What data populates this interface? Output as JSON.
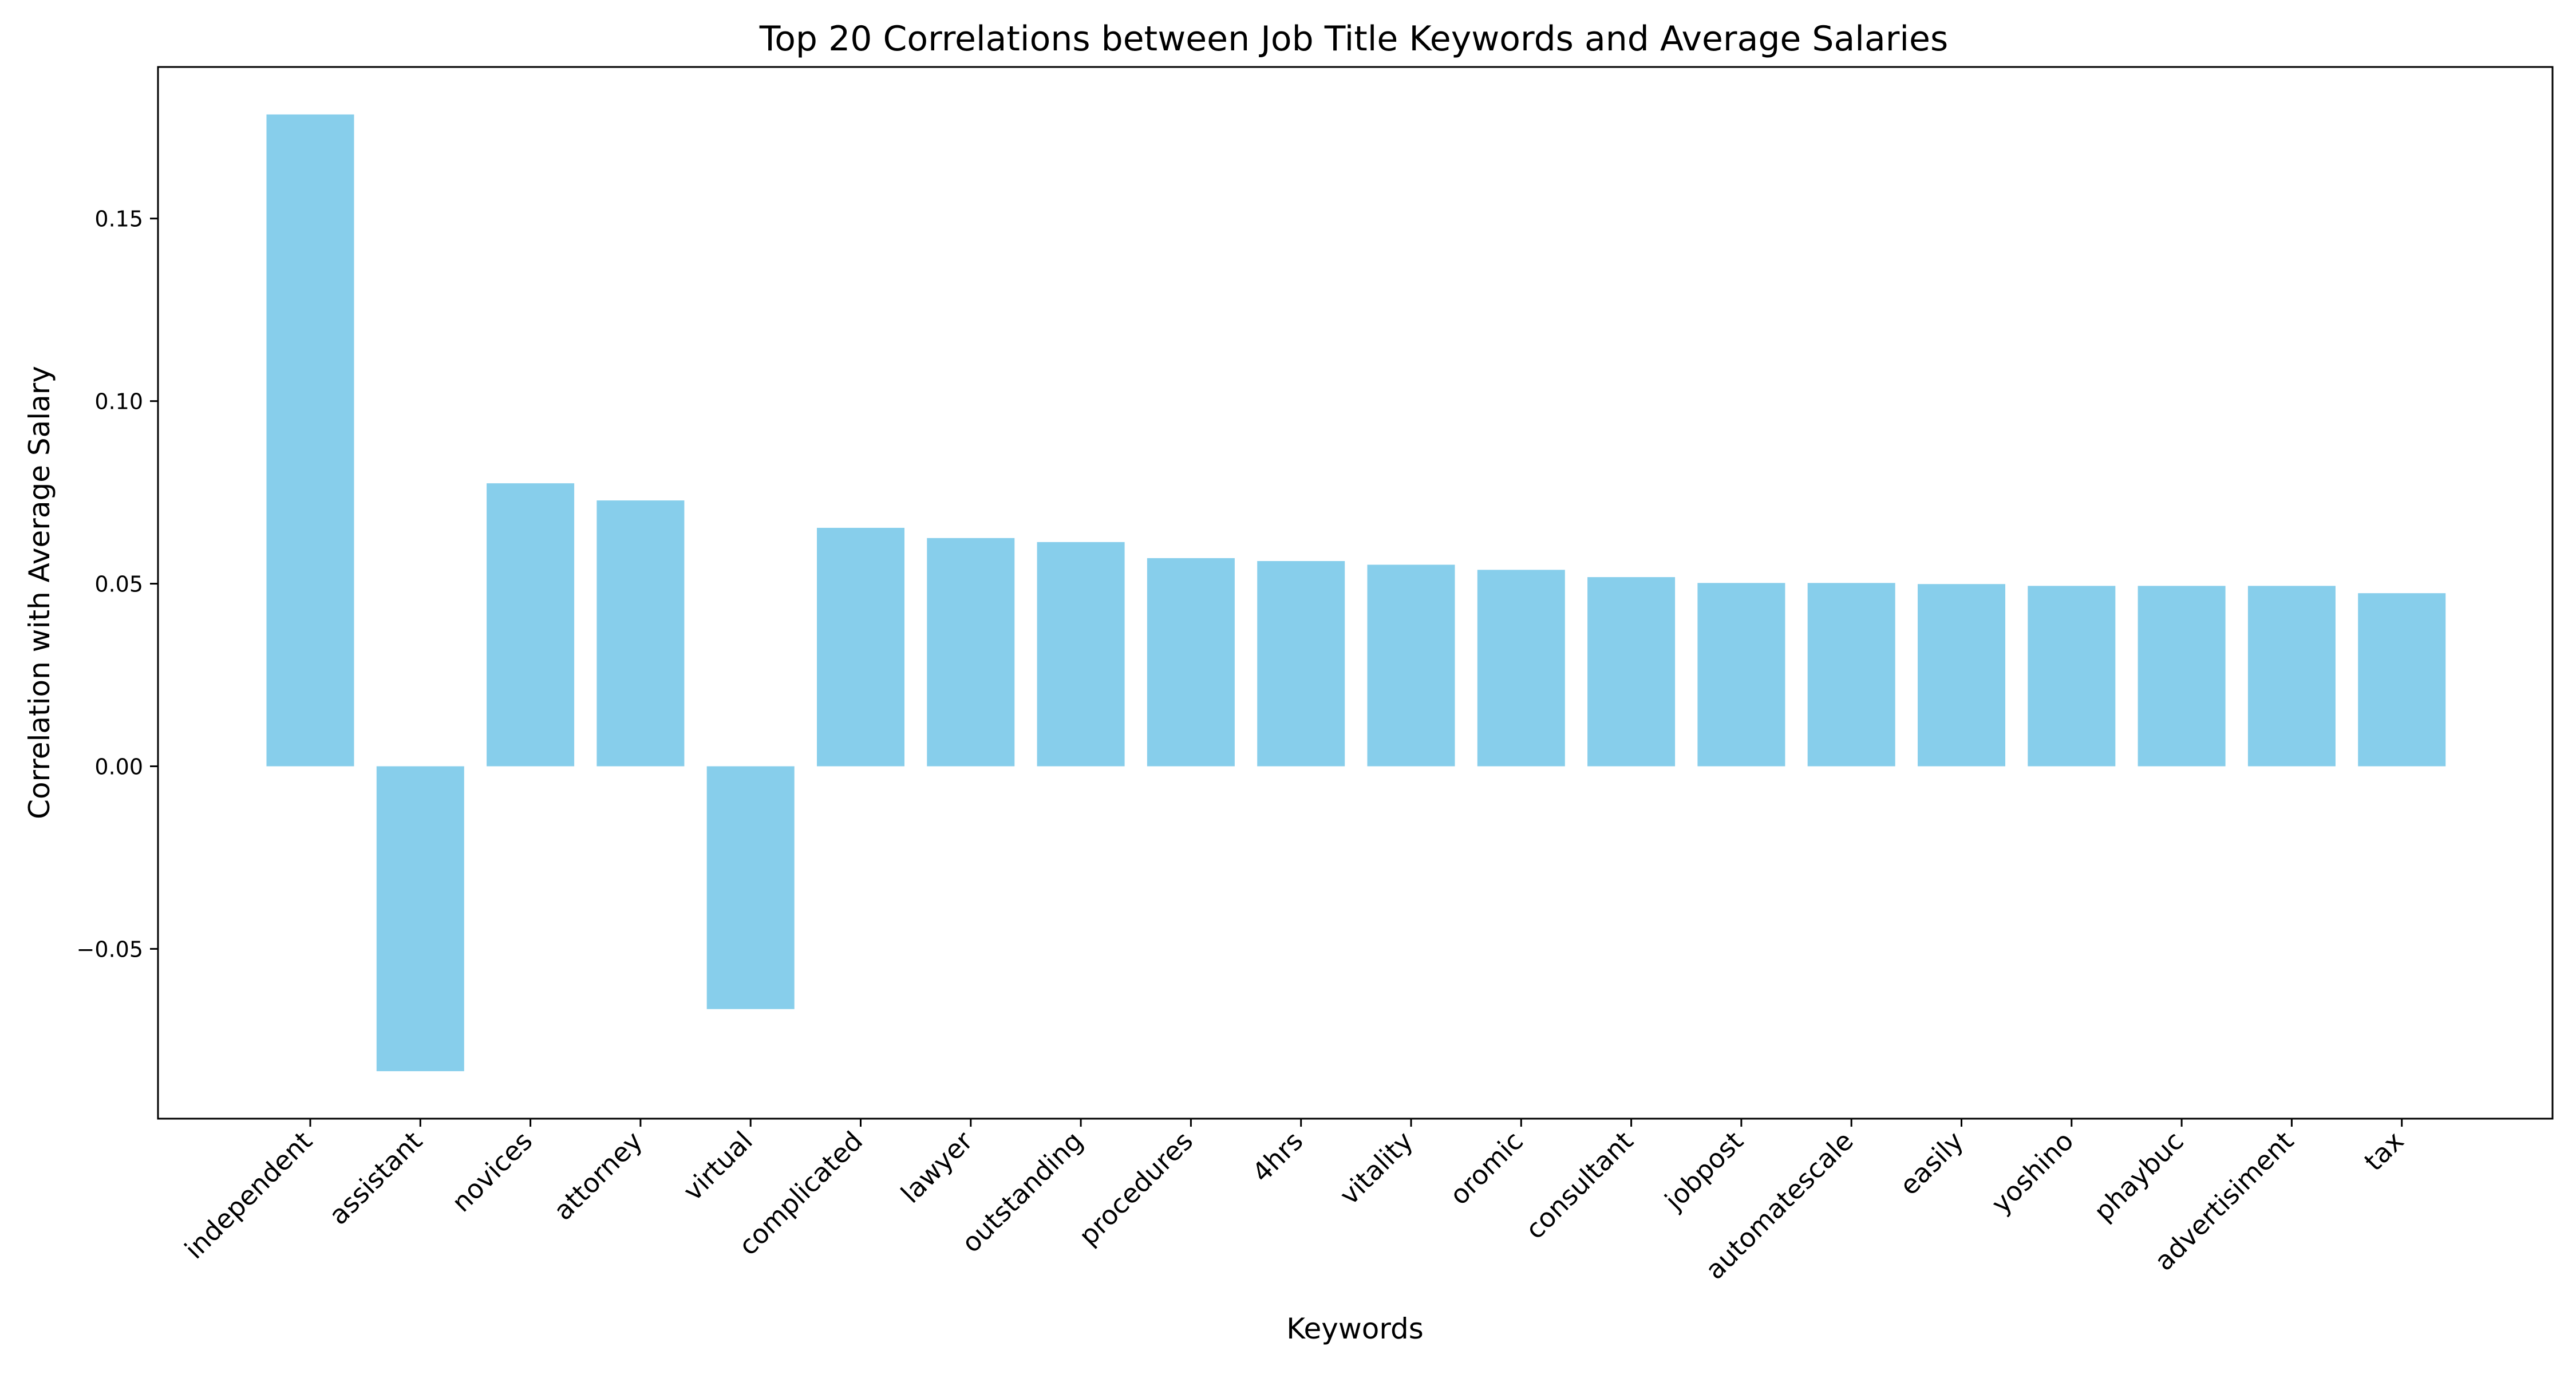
{
  "chart_data": {
    "type": "bar",
    "title": "Top 20 Correlations between Job Title Keywords and Average Salaries",
    "xlabel": "Keywords",
    "ylabel": "Correlation with Average Salary",
    "categories": [
      "independent",
      "assistant",
      "novices",
      "attorney",
      "virtual",
      "complicated",
      "lawyer",
      "outstanding",
      "procedures",
      "4hrs",
      "vitality",
      "oromic",
      "consultant",
      "jobpost",
      "automatescale",
      "easily",
      "yoshino",
      "phaybuc",
      "advertisiment",
      "tax"
    ],
    "values": [
      0.1785,
      -0.0835,
      0.0775,
      0.0728,
      -0.0665,
      0.0653,
      0.0625,
      0.0614,
      0.057,
      0.0562,
      0.0552,
      0.0538,
      0.0518,
      0.0502,
      0.0502,
      0.0499,
      0.0494,
      0.0494,
      0.0494,
      0.0474
    ],
    "ylim": [
      -0.0965,
      0.1915
    ],
    "yticks": [
      -0.05,
      0.0,
      0.05,
      0.1,
      0.15
    ],
    "ytick_labels": [
      "−0.05",
      "0.00",
      "0.05",
      "0.10",
      "0.15"
    ],
    "bar_color": "#87CEEB",
    "grid": false,
    "legend": "none"
  }
}
